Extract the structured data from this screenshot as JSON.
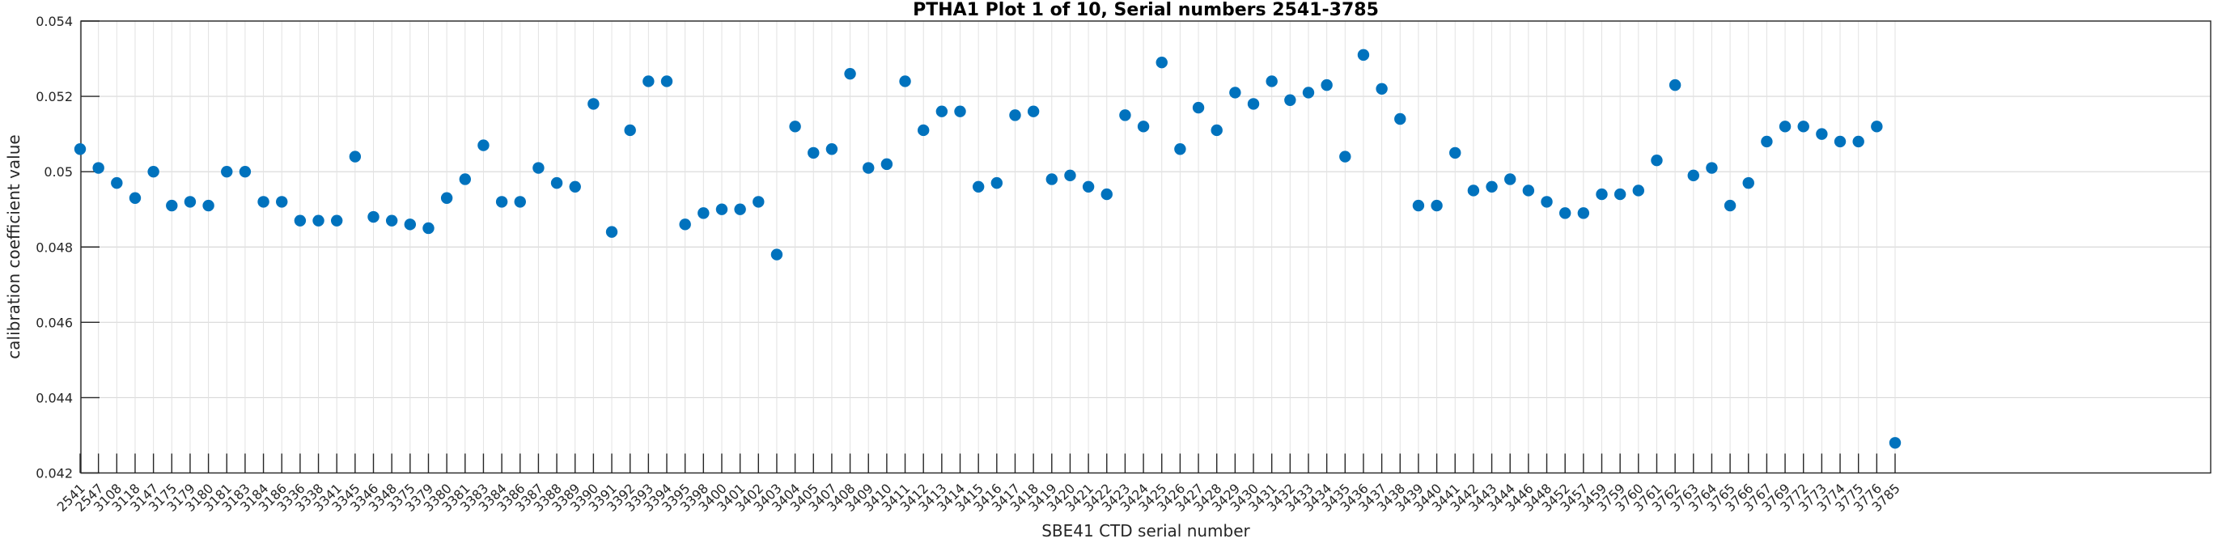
{
  "figure": {
    "title": "PTHA1 Plot 1 of 10, Serial numbers 2541-3785",
    "xlabel": "SBE41 CTD serial number",
    "ylabel": "calibration coefficient value"
  },
  "chart_data": {
    "type": "scatter",
    "title": "PTHA1 Plot 1 of 10, Serial numbers 2541-3785",
    "xlabel": "SBE41 CTD serial number",
    "ylabel": "calibration coefficient value",
    "ylim": [
      0.042,
      0.054
    ],
    "yticks": [
      0.042,
      0.044,
      0.046,
      0.048,
      0.05,
      0.052,
      0.054
    ],
    "grid": true,
    "legend": "none",
    "marker_color": "#0072BD",
    "axis_color": "#262626",
    "grid_color_vertical": "#e2e2e2",
    "grid_color_horizontal": "#d8d8d8",
    "categories": [
      "2541",
      "2547",
      "3108",
      "3118",
      "3147",
      "3175",
      "3179",
      "3180",
      "3181",
      "3183",
      "3184",
      "3186",
      "3336",
      "3338",
      "3341",
      "3345",
      "3346",
      "3348",
      "3375",
      "3379",
      "3380",
      "3381",
      "3383",
      "3384",
      "3386",
      "3387",
      "3388",
      "3389",
      "3390",
      "3391",
      "3392",
      "3393",
      "3394",
      "3395",
      "3398",
      "3400",
      "3401",
      "3402",
      "3403",
      "3404",
      "3405",
      "3407",
      "3408",
      "3409",
      "3410",
      "3411",
      "3412",
      "3413",
      "3414",
      "3415",
      "3416",
      "3417",
      "3418",
      "3419",
      "3420",
      "3421",
      "3422",
      "3423",
      "3424",
      "3425",
      "3426",
      "3427",
      "3428",
      "3429",
      "3430",
      "3431",
      "3432",
      "3433",
      "3434",
      "3435",
      "3436",
      "3437",
      "3438",
      "3439",
      "3440",
      "3441",
      "3442",
      "3443",
      "3444",
      "3446",
      "3448",
      "3452",
      "3457",
      "3459",
      "3759",
      "3760",
      "3761",
      "3762",
      "3763",
      "3764",
      "3765",
      "3766",
      "3767",
      "3769",
      "3772",
      "3773",
      "3774",
      "3775",
      "3776",
      "3785"
    ],
    "values": [
      0.0506,
      0.0501,
      0.0497,
      0.0493,
      0.05,
      0.0491,
      0.0492,
      0.0491,
      0.05,
      0.05,
      0.0492,
      0.0492,
      0.0487,
      0.0487,
      0.0487,
      0.0504,
      0.0488,
      0.0487,
      0.0486,
      0.0485,
      0.0493,
      0.0498,
      0.0507,
      0.0492,
      0.0492,
      0.0501,
      0.0497,
      0.0496,
      0.0518,
      0.0484,
      0.0511,
      0.0524,
      0.0524,
      0.0486,
      0.0489,
      0.049,
      0.049,
      0.0492,
      0.0478,
      0.0512,
      0.0505,
      0.0506,
      0.0526,
      0.0501,
      0.0502,
      0.0524,
      0.0511,
      0.0516,
      0.0516,
      0.0496,
      0.0497,
      0.0515,
      0.0516,
      0.0498,
      0.0499,
      0.0496,
      0.0494,
      0.0515,
      0.0512,
      0.0529,
      0.0506,
      0.0517,
      0.0511,
      0.0521,
      0.0518,
      0.0524,
      0.0519,
      0.0521,
      0.0523,
      0.0504,
      0.0531,
      0.0522,
      0.0514,
      0.0491,
      0.0491,
      0.0505,
      0.0495,
      0.0496,
      0.0498,
      0.0495,
      0.0492,
      0.0489,
      0.0489,
      0.0494,
      0.0494,
      0.0495,
      0.0503,
      0.0523,
      0.0499,
      0.0501,
      0.0491,
      0.0497,
      0.0508,
      0.0512,
      0.0512,
      0.051,
      0.0508,
      0.0508,
      0.0512,
      0.0428
    ]
  }
}
